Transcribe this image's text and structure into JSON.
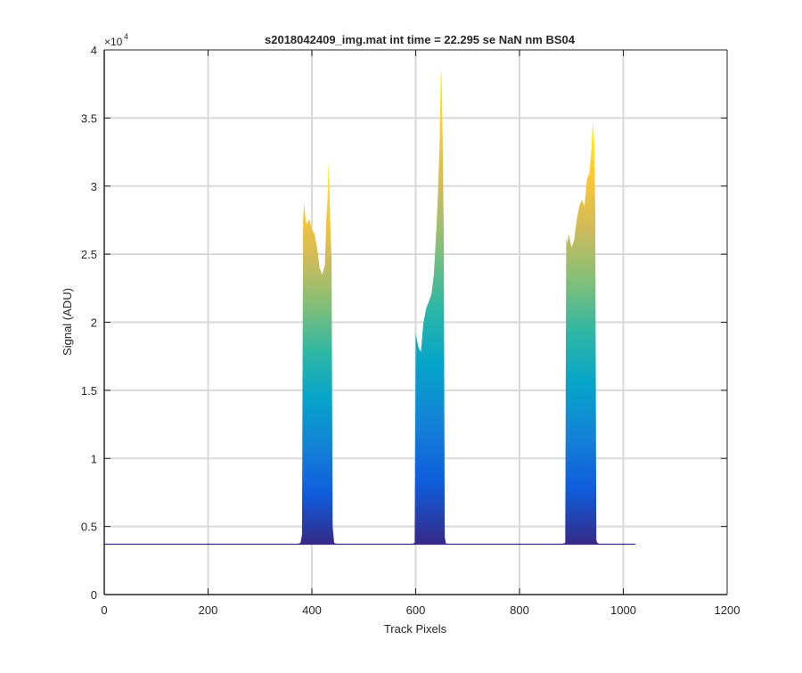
{
  "chart_data": {
    "type": "area",
    "title": "s2018042409_img.mat int time = 22.295 se  NaN nm BS04",
    "xlabel": "Track Pixels",
    "ylabel": "Signal (ADU)",
    "xlim": [
      0,
      1200
    ],
    "ylim": [
      0,
      40000
    ],
    "x_ticks": [
      0,
      200,
      400,
      600,
      800,
      1000,
      1200
    ],
    "y_ticks": [
      0,
      5000,
      10000,
      15000,
      20000,
      25000,
      30000,
      35000,
      40000
    ],
    "y_tick_labels": [
      "0",
      "0.5",
      "1",
      "1.5",
      "2",
      "2.5",
      "3",
      "3.5",
      "4"
    ],
    "y_exponent_label": "×10",
    "y_exponent_power": "4",
    "grid": true,
    "colormap": "parula",
    "baseline": 3700,
    "series": [
      {
        "x": [
          0,
          370,
          378,
          381,
          383,
          385,
          388,
          390,
          395,
          400,
          405,
          410,
          415,
          420,
          425,
          428,
          430,
          432,
          434,
          436,
          438,
          440,
          443,
          450,
          1023
        ],
        "y": [
          3700,
          3700,
          3800,
          4400,
          27500,
          28800,
          27500,
          27200,
          27600,
          26800,
          26500,
          25500,
          24000,
          23500,
          24200,
          27600,
          29000,
          31800,
          29500,
          26500,
          24600,
          5000,
          3800,
          3700,
          3700
        ]
      },
      {
        "x": [
          590,
          598,
          600,
          602,
          605,
          610,
          615,
          620,
          625,
          630,
          635,
          640,
          643,
          646,
          648,
          650,
          652,
          654,
          656,
          658,
          660,
          670
        ],
        "y": [
          3700,
          3800,
          19200,
          18800,
          18200,
          17800,
          20000,
          21000,
          21500,
          22000,
          23500,
          27000,
          29500,
          33000,
          38000,
          38600,
          33000,
          26800,
          4200,
          3800,
          3700,
          3700
        ]
      },
      {
        "x": [
          880,
          888,
          890,
          892,
          895,
          900,
          905,
          910,
          915,
          920,
          925,
          930,
          935,
          938,
          940,
          942,
          944,
          946,
          948,
          950,
          955,
          960
        ],
        "y": [
          3700,
          3800,
          26200,
          25800,
          26500,
          25500,
          26000,
          27500,
          28500,
          29000,
          28500,
          30500,
          31000,
          32500,
          34000,
          34700,
          33000,
          28000,
          4000,
          3800,
          3700,
          3700
        ]
      }
    ]
  }
}
